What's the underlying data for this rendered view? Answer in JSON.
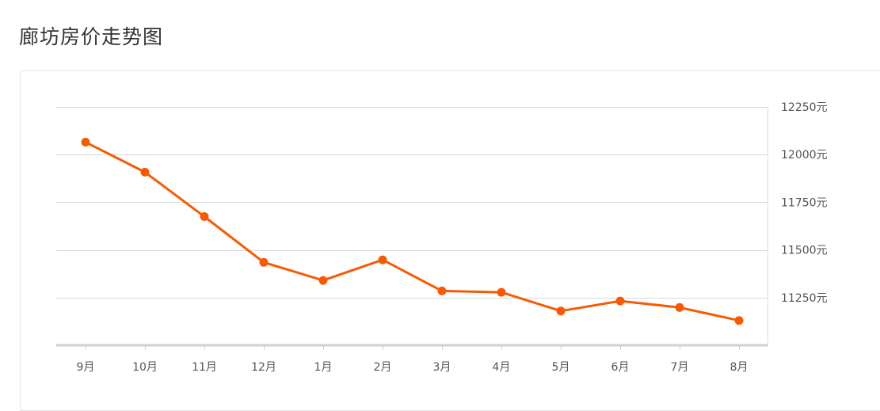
{
  "title": "廊坊房价走势图",
  "colors": {
    "line": "#f55b06",
    "grid": "#d9d9d9",
    "axis": "#d0d0d0",
    "text": "#555555"
  },
  "chart_data": {
    "type": "line",
    "title": "廊坊房价走势图",
    "categories": [
      "9月",
      "10月",
      "11月",
      "12月",
      "1月",
      "2月",
      "3月",
      "4月",
      "5月",
      "6月",
      "7月",
      "8月"
    ],
    "series": [
      {
        "values": [
          12065,
          11908,
          11675,
          11435,
          11340,
          11448,
          11285,
          11278,
          11180,
          11232,
          11198,
          11130
        ]
      }
    ],
    "yticks": [
      11250,
      11500,
      11750,
      12000,
      12250
    ],
    "ytick_labels": [
      "11250元",
      "11500元",
      "11750元",
      "12000元",
      "12250元"
    ],
    "y_axis_position": "right",
    "ylim": [
      11000,
      12250
    ],
    "grid": true,
    "legend": "none"
  }
}
